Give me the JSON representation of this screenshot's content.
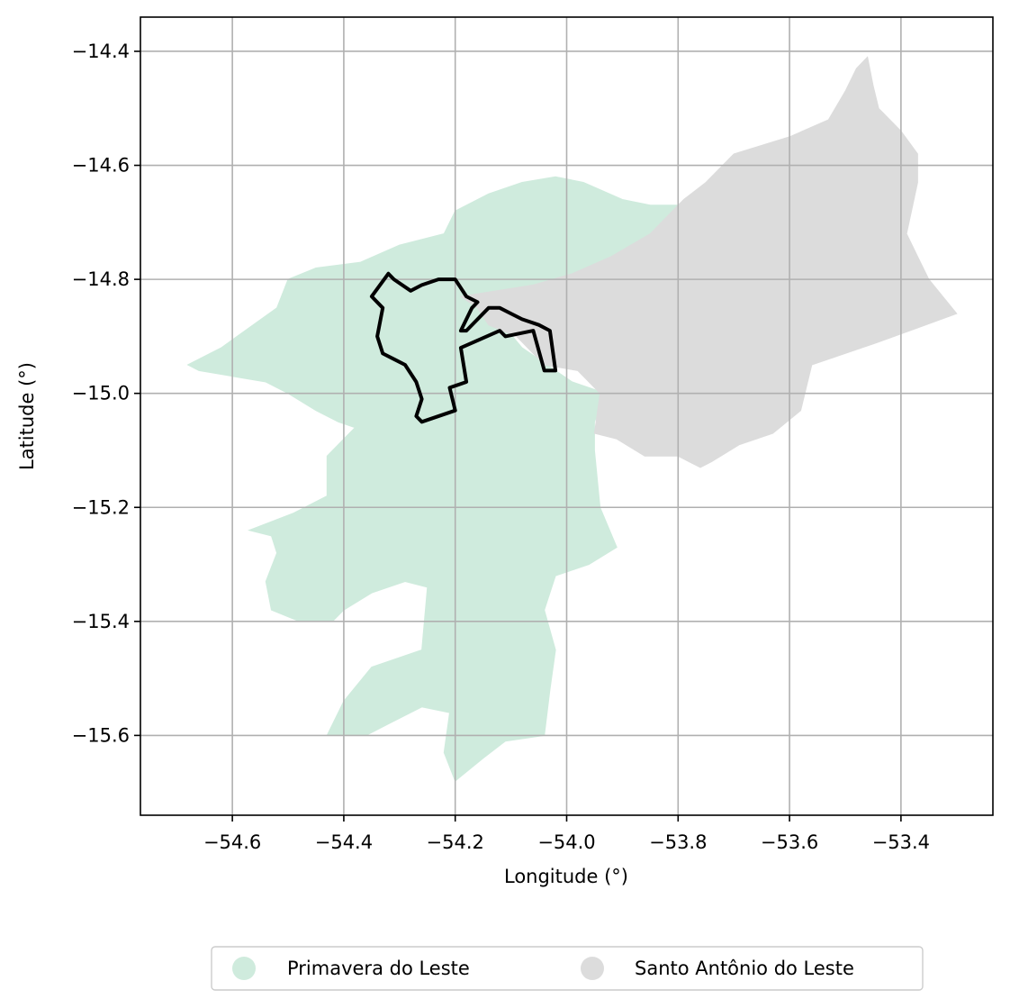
{
  "chart_data": {
    "type": "map",
    "xlabel": "Longitude (°)",
    "ylabel": "Latitude (°)",
    "xlim": [
      -54.765,
      -53.235
    ],
    "ylim": [
      -15.74,
      -14.34
    ],
    "x_ticks": [
      -54.6,
      -54.4,
      -54.2,
      -54.0,
      -53.8,
      -53.6,
      -53.4
    ],
    "x_tick_labels": [
      "−54.6",
      "−54.4",
      "−54.2",
      "−54.0",
      "−53.8",
      "−53.6",
      "−53.4"
    ],
    "y_ticks": [
      -14.4,
      -14.6,
      -14.8,
      -15.0,
      -15.2,
      -15.4,
      -15.6
    ],
    "y_tick_labels": [
      "−14.4",
      "−14.6",
      "−14.8",
      "−15.0",
      "−15.2",
      "−15.4",
      "−15.6"
    ],
    "grid": true,
    "legend_position": "bottom-center",
    "regions": [
      {
        "name": "Primavera do Leste",
        "color": "#cfebdd",
        "polygon": [
          [
            -54.68,
            -14.95
          ],
          [
            -54.62,
            -14.92
          ],
          [
            -54.52,
            -14.85
          ],
          [
            -54.5,
            -14.8
          ],
          [
            -54.45,
            -14.78
          ],
          [
            -54.37,
            -14.77
          ],
          [
            -54.3,
            -14.74
          ],
          [
            -54.22,
            -14.72
          ],
          [
            -54.2,
            -14.68
          ],
          [
            -54.14,
            -14.65
          ],
          [
            -54.08,
            -14.63
          ],
          [
            -54.02,
            -14.62
          ],
          [
            -53.97,
            -14.63
          ],
          [
            -53.9,
            -14.66
          ],
          [
            -53.85,
            -14.67
          ],
          [
            -53.79,
            -14.67
          ],
          [
            -53.82,
            -14.74
          ],
          [
            -53.88,
            -14.78
          ],
          [
            -53.95,
            -14.82
          ],
          [
            -54.04,
            -14.84
          ],
          [
            -54.14,
            -14.85
          ],
          [
            -54.08,
            -14.92
          ],
          [
            -54.02,
            -14.96
          ],
          [
            -53.99,
            -14.98
          ],
          [
            -53.93,
            -15.0
          ],
          [
            -53.95,
            -15.05
          ],
          [
            -53.95,
            -15.1
          ],
          [
            -53.94,
            -15.2
          ],
          [
            -53.91,
            -15.27
          ],
          [
            -53.96,
            -15.3
          ],
          [
            -54.02,
            -15.32
          ],
          [
            -54.04,
            -15.38
          ],
          [
            -54.02,
            -15.45
          ],
          [
            -54.03,
            -15.52
          ],
          [
            -54.04,
            -15.6
          ],
          [
            -54.11,
            -15.61
          ],
          [
            -54.15,
            -15.64
          ],
          [
            -54.2,
            -15.68
          ],
          [
            -54.22,
            -15.63
          ],
          [
            -54.21,
            -15.56
          ],
          [
            -54.26,
            -15.55
          ],
          [
            -54.32,
            -15.58
          ],
          [
            -54.36,
            -15.6
          ],
          [
            -54.43,
            -15.6
          ],
          [
            -54.4,
            -15.54
          ],
          [
            -54.35,
            -15.48
          ],
          [
            -54.26,
            -15.45
          ],
          [
            -54.25,
            -15.34
          ],
          [
            -54.29,
            -15.33
          ],
          [
            -54.35,
            -15.35
          ],
          [
            -54.4,
            -15.38
          ],
          [
            -54.42,
            -15.4
          ],
          [
            -54.48,
            -15.4
          ],
          [
            -54.53,
            -15.38
          ],
          [
            -54.54,
            -15.33
          ],
          [
            -54.52,
            -15.28
          ],
          [
            -54.53,
            -15.25
          ],
          [
            -54.57,
            -15.24
          ],
          [
            -54.49,
            -15.21
          ],
          [
            -54.43,
            -15.18
          ],
          [
            -54.43,
            -15.11
          ],
          [
            -54.38,
            -15.06
          ],
          [
            -54.41,
            -15.05
          ],
          [
            -54.45,
            -15.03
          ],
          [
            -54.5,
            -15.0
          ],
          [
            -54.54,
            -14.98
          ],
          [
            -54.6,
            -14.97
          ],
          [
            -54.66,
            -14.96
          ]
        ]
      },
      {
        "name": "Santo Antônio do Leste",
        "color": "#dcdcdc",
        "polygon": [
          [
            -54.19,
            -14.83
          ],
          [
            -54.06,
            -14.81
          ],
          [
            -53.99,
            -14.79
          ],
          [
            -53.92,
            -14.76
          ],
          [
            -53.85,
            -14.72
          ],
          [
            -53.79,
            -14.66
          ],
          [
            -53.75,
            -14.63
          ],
          [
            -53.7,
            -14.58
          ],
          [
            -53.6,
            -14.55
          ],
          [
            -53.53,
            -14.52
          ],
          [
            -53.5,
            -14.47
          ],
          [
            -53.48,
            -14.43
          ],
          [
            -53.46,
            -14.41
          ],
          [
            -53.45,
            -14.46
          ],
          [
            -53.44,
            -14.5
          ],
          [
            -53.4,
            -14.54
          ],
          [
            -53.37,
            -14.58
          ],
          [
            -53.37,
            -14.63
          ],
          [
            -53.39,
            -14.72
          ],
          [
            -53.37,
            -14.76
          ],
          [
            -53.35,
            -14.8
          ],
          [
            -53.3,
            -14.86
          ],
          [
            -53.44,
            -14.91
          ],
          [
            -53.56,
            -14.95
          ],
          [
            -53.58,
            -15.03
          ],
          [
            -53.63,
            -15.07
          ],
          [
            -53.69,
            -15.09
          ],
          [
            -53.74,
            -15.12
          ],
          [
            -53.76,
            -15.13
          ],
          [
            -53.8,
            -15.11
          ],
          [
            -53.86,
            -15.11
          ],
          [
            -53.91,
            -15.08
          ],
          [
            -53.95,
            -15.07
          ],
          [
            -53.94,
            -15.0
          ],
          [
            -53.98,
            -14.96
          ],
          [
            -54.04,
            -14.95
          ],
          [
            -54.09,
            -14.9
          ],
          [
            -54.14,
            -14.88
          ],
          [
            -54.16,
            -14.85
          ]
        ]
      }
    ],
    "outline": {
      "color": "#000000",
      "polygon": [
        [
          -54.32,
          -14.79
        ],
        [
          -54.35,
          -14.83
        ],
        [
          -54.33,
          -14.85
        ],
        [
          -54.34,
          -14.9
        ],
        [
          -54.33,
          -14.93
        ],
        [
          -54.31,
          -14.94
        ],
        [
          -54.29,
          -14.95
        ],
        [
          -54.27,
          -14.98
        ],
        [
          -54.26,
          -15.01
        ],
        [
          -54.27,
          -15.04
        ],
        [
          -54.26,
          -15.05
        ],
        [
          -54.2,
          -15.03
        ],
        [
          -54.21,
          -14.99
        ],
        [
          -54.18,
          -14.98
        ],
        [
          -54.19,
          -14.92
        ],
        [
          -54.12,
          -14.89
        ],
        [
          -54.11,
          -14.9
        ],
        [
          -54.06,
          -14.89
        ],
        [
          -54.04,
          -14.96
        ],
        [
          -54.02,
          -14.96
        ],
        [
          -54.03,
          -14.89
        ],
        [
          -54.05,
          -14.88
        ],
        [
          -54.08,
          -14.87
        ],
        [
          -54.1,
          -14.86
        ],
        [
          -54.12,
          -14.85
        ],
        [
          -54.14,
          -14.85
        ],
        [
          -54.18,
          -14.89
        ],
        [
          -54.19,
          -14.89
        ],
        [
          -54.17,
          -14.85
        ],
        [
          -54.16,
          -14.84
        ],
        [
          -54.18,
          -14.83
        ],
        [
          -54.2,
          -14.8
        ],
        [
          -54.23,
          -14.8
        ],
        [
          -54.26,
          -14.81
        ],
        [
          -54.28,
          -14.82
        ],
        [
          -54.31,
          -14.8
        ]
      ]
    }
  }
}
